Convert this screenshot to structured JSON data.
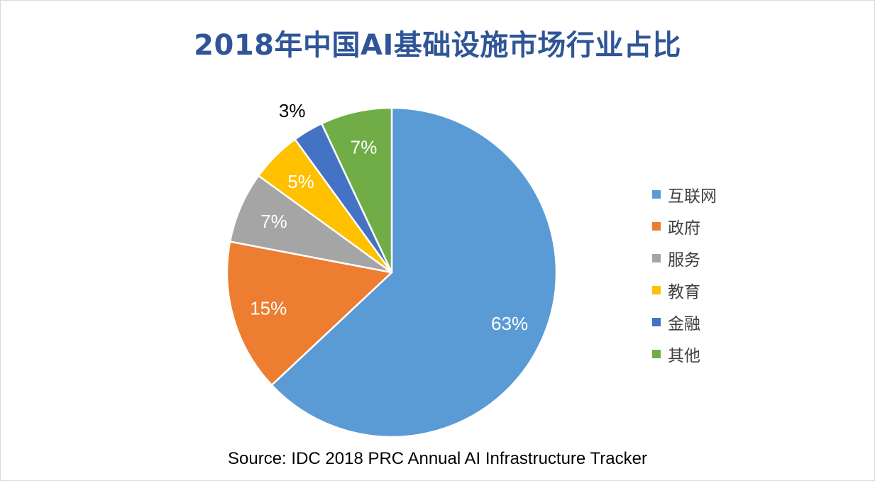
{
  "chart_data": {
    "type": "pie",
    "title": "2018年中国AI基础设施市场行业占比",
    "source": "Source: IDC 2018 PRC Annual AI Infrastructure Tracker",
    "legend_position": "right",
    "slices": [
      {
        "label": "互联网",
        "value": 63,
        "display": "63%",
        "color": "#5b9bd5"
      },
      {
        "label": "政府",
        "value": 15,
        "display": "15%",
        "color": "#ed7d31"
      },
      {
        "label": "服务",
        "value": 7,
        "display": "7%",
        "color": "#a5a5a5"
      },
      {
        "label": "教育",
        "value": 5,
        "display": "5%",
        "color": "#ffc000"
      },
      {
        "label": "金融",
        "value": 3,
        "display": "3%",
        "color": "#4472c4"
      },
      {
        "label": "其他",
        "value": 7,
        "display": "7%",
        "color": "#70ad47"
      }
    ]
  }
}
